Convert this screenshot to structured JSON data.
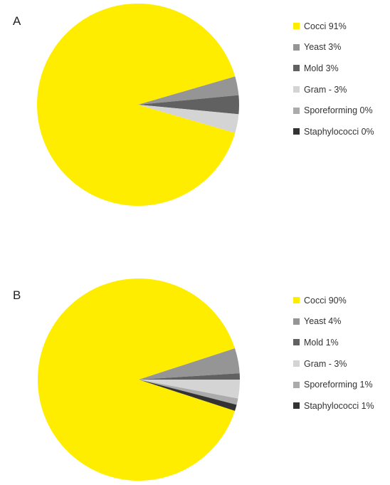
{
  "chart_data": [
    {
      "type": "pie",
      "panel_label": "A",
      "slices": [
        {
          "label": "Cocci 91%",
          "value": 91,
          "color": "#FFED00"
        },
        {
          "label": "Yeast 3%",
          "value": 3,
          "color": "#959595"
        },
        {
          "label": "Mold 3%",
          "value": 3,
          "color": "#616161"
        },
        {
          "label": "Gram - 3%",
          "value": 3,
          "color": "#D4D4D4"
        },
        {
          "label": "Sporeforming 0%",
          "value": 0,
          "color": "#ABABAB"
        },
        {
          "label": "Staphylococci 0%",
          "value": 0,
          "color": "#333333"
        }
      ],
      "legend_position": "right"
    },
    {
      "type": "pie",
      "panel_label": "B",
      "slices": [
        {
          "label": "Cocci 90%",
          "value": 90,
          "color": "#FFED00"
        },
        {
          "label": "Yeast 4%",
          "value": 4,
          "color": "#959595"
        },
        {
          "label": "Mold 1%",
          "value": 1,
          "color": "#616161"
        },
        {
          "label": "Gram - 3%",
          "value": 3,
          "color": "#D4D4D4"
        },
        {
          "label": "Sporeforming 1%",
          "value": 1,
          "color": "#ABABAB"
        },
        {
          "label": "Staphylococci 1%",
          "value": 1,
          "color": "#333333"
        }
      ],
      "legend_position": "right"
    }
  ]
}
